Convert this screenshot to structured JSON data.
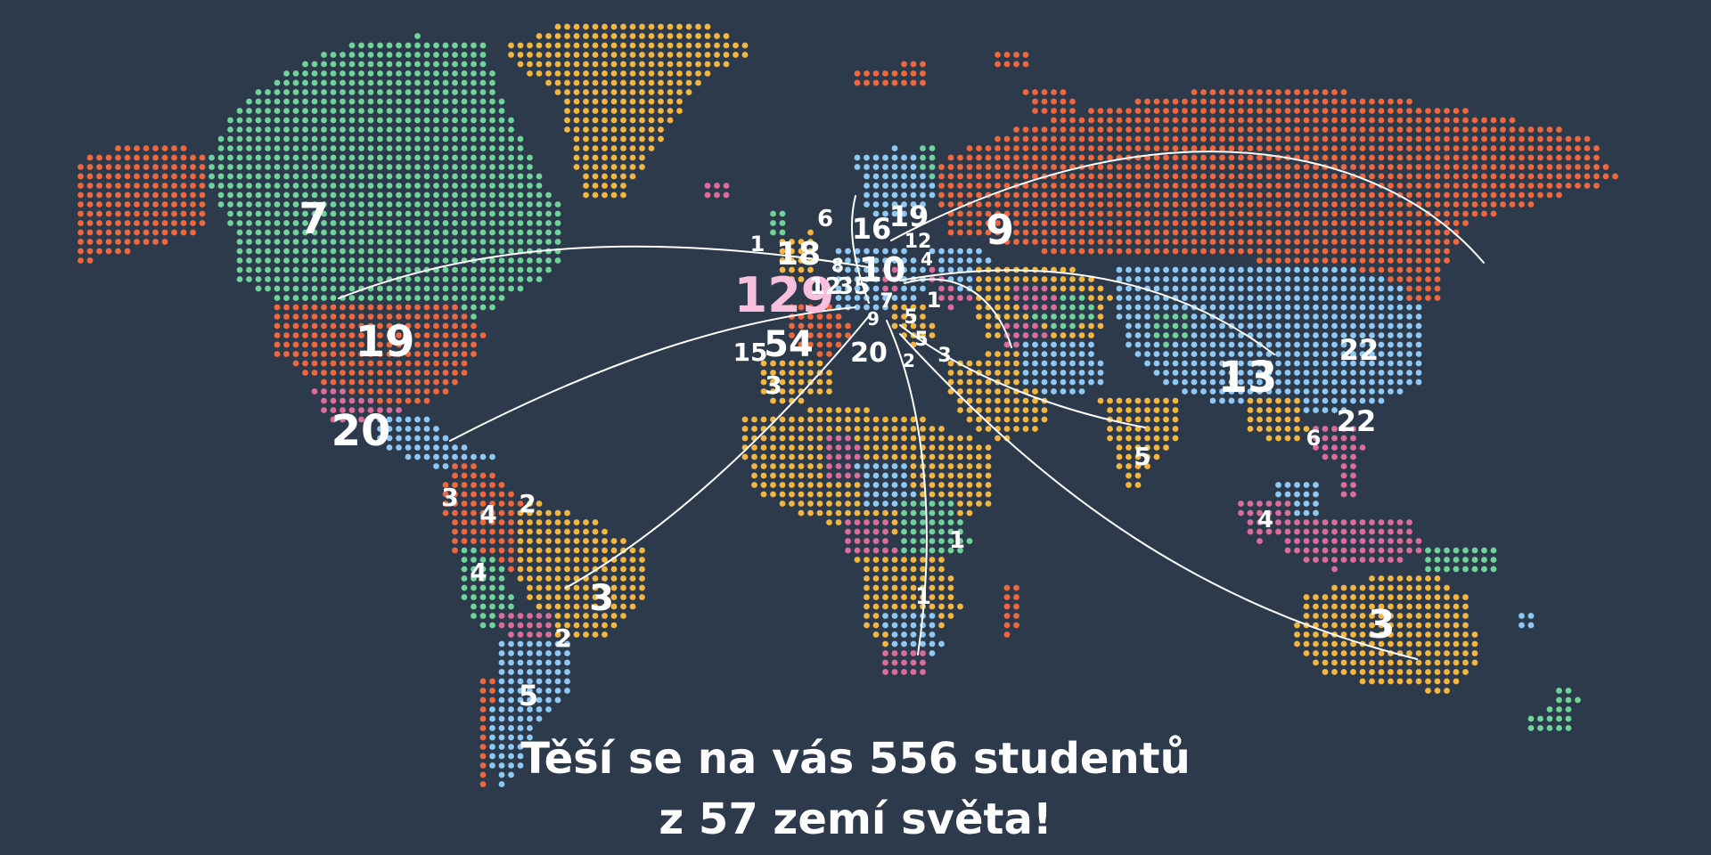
{
  "palette": {
    "background": "#2d3a4c",
    "orange": "#f0673d",
    "green": "#6fd49a",
    "yellow": "#f5b640",
    "blue": "#8ec8f5",
    "pink": "#dd6c9a",
    "label": "#ffffff",
    "highlight": "#f8c0dc",
    "arc": "#ffffff"
  },
  "caption": {
    "line1": "Těší se na vás 556 studentů",
    "line2": "z 57 zemí světa!"
  },
  "hub": "Czech Republic",
  "labels": [
    {
      "text": "129",
      "region": "Czech Republic",
      "major": true
    },
    {
      "text": "54",
      "region": "Germany"
    },
    {
      "text": "15",
      "region": "France"
    },
    {
      "text": "3",
      "region": "Spain"
    },
    {
      "text": "18",
      "region": "United Kingdom"
    },
    {
      "text": "1",
      "region": "Ireland"
    },
    {
      "text": "6",
      "region": "Norway"
    },
    {
      "text": "16",
      "region": "Sweden"
    },
    {
      "text": "19",
      "region": "Finland"
    },
    {
      "text": "12",
      "region": "Baltics"
    },
    {
      "text": "4",
      "region": "Belarus"
    },
    {
      "text": "10",
      "region": "Poland"
    },
    {
      "text": "8",
      "region": "Denmark"
    },
    {
      "text": "12",
      "region": "Netherlands"
    },
    {
      "text": "35",
      "region": "Slovakia"
    },
    {
      "text": "7",
      "region": "Hungary"
    },
    {
      "text": "1",
      "region": "Ukraine"
    },
    {
      "text": "5",
      "region": "Romania"
    },
    {
      "text": "5",
      "region": "Bulgaria"
    },
    {
      "text": "9",
      "region": "Austria"
    },
    {
      "text": "20",
      "region": "Italy"
    },
    {
      "text": "2",
      "region": "Greece"
    },
    {
      "text": "3",
      "region": "Turkey"
    },
    {
      "text": "9",
      "region": "Russia"
    },
    {
      "text": "7",
      "region": "Canada"
    },
    {
      "text": "19",
      "region": "United States"
    },
    {
      "text": "20",
      "region": "Mexico"
    },
    {
      "text": "3",
      "region": "Central America"
    },
    {
      "text": "4",
      "region": "Colombia"
    },
    {
      "text": "2",
      "region": "Venezuela"
    },
    {
      "text": "4",
      "region": "Ecuador"
    },
    {
      "text": "3",
      "region": "Brazil"
    },
    {
      "text": "2",
      "region": "Bolivia"
    },
    {
      "text": "5",
      "region": "Chile"
    },
    {
      "text": "1",
      "region": "Central Africa"
    },
    {
      "text": "1",
      "region": "Southern Africa"
    },
    {
      "text": "13",
      "region": "China"
    },
    {
      "text": "22",
      "region": "Korea"
    },
    {
      "text": "22",
      "region": "Japan"
    },
    {
      "text": "6",
      "region": "India"
    },
    {
      "text": "4",
      "region": "Taiwan"
    },
    {
      "text": "5",
      "region": "South-East Asia"
    },
    {
      "text": "3",
      "region": "Australia"
    }
  ]
}
